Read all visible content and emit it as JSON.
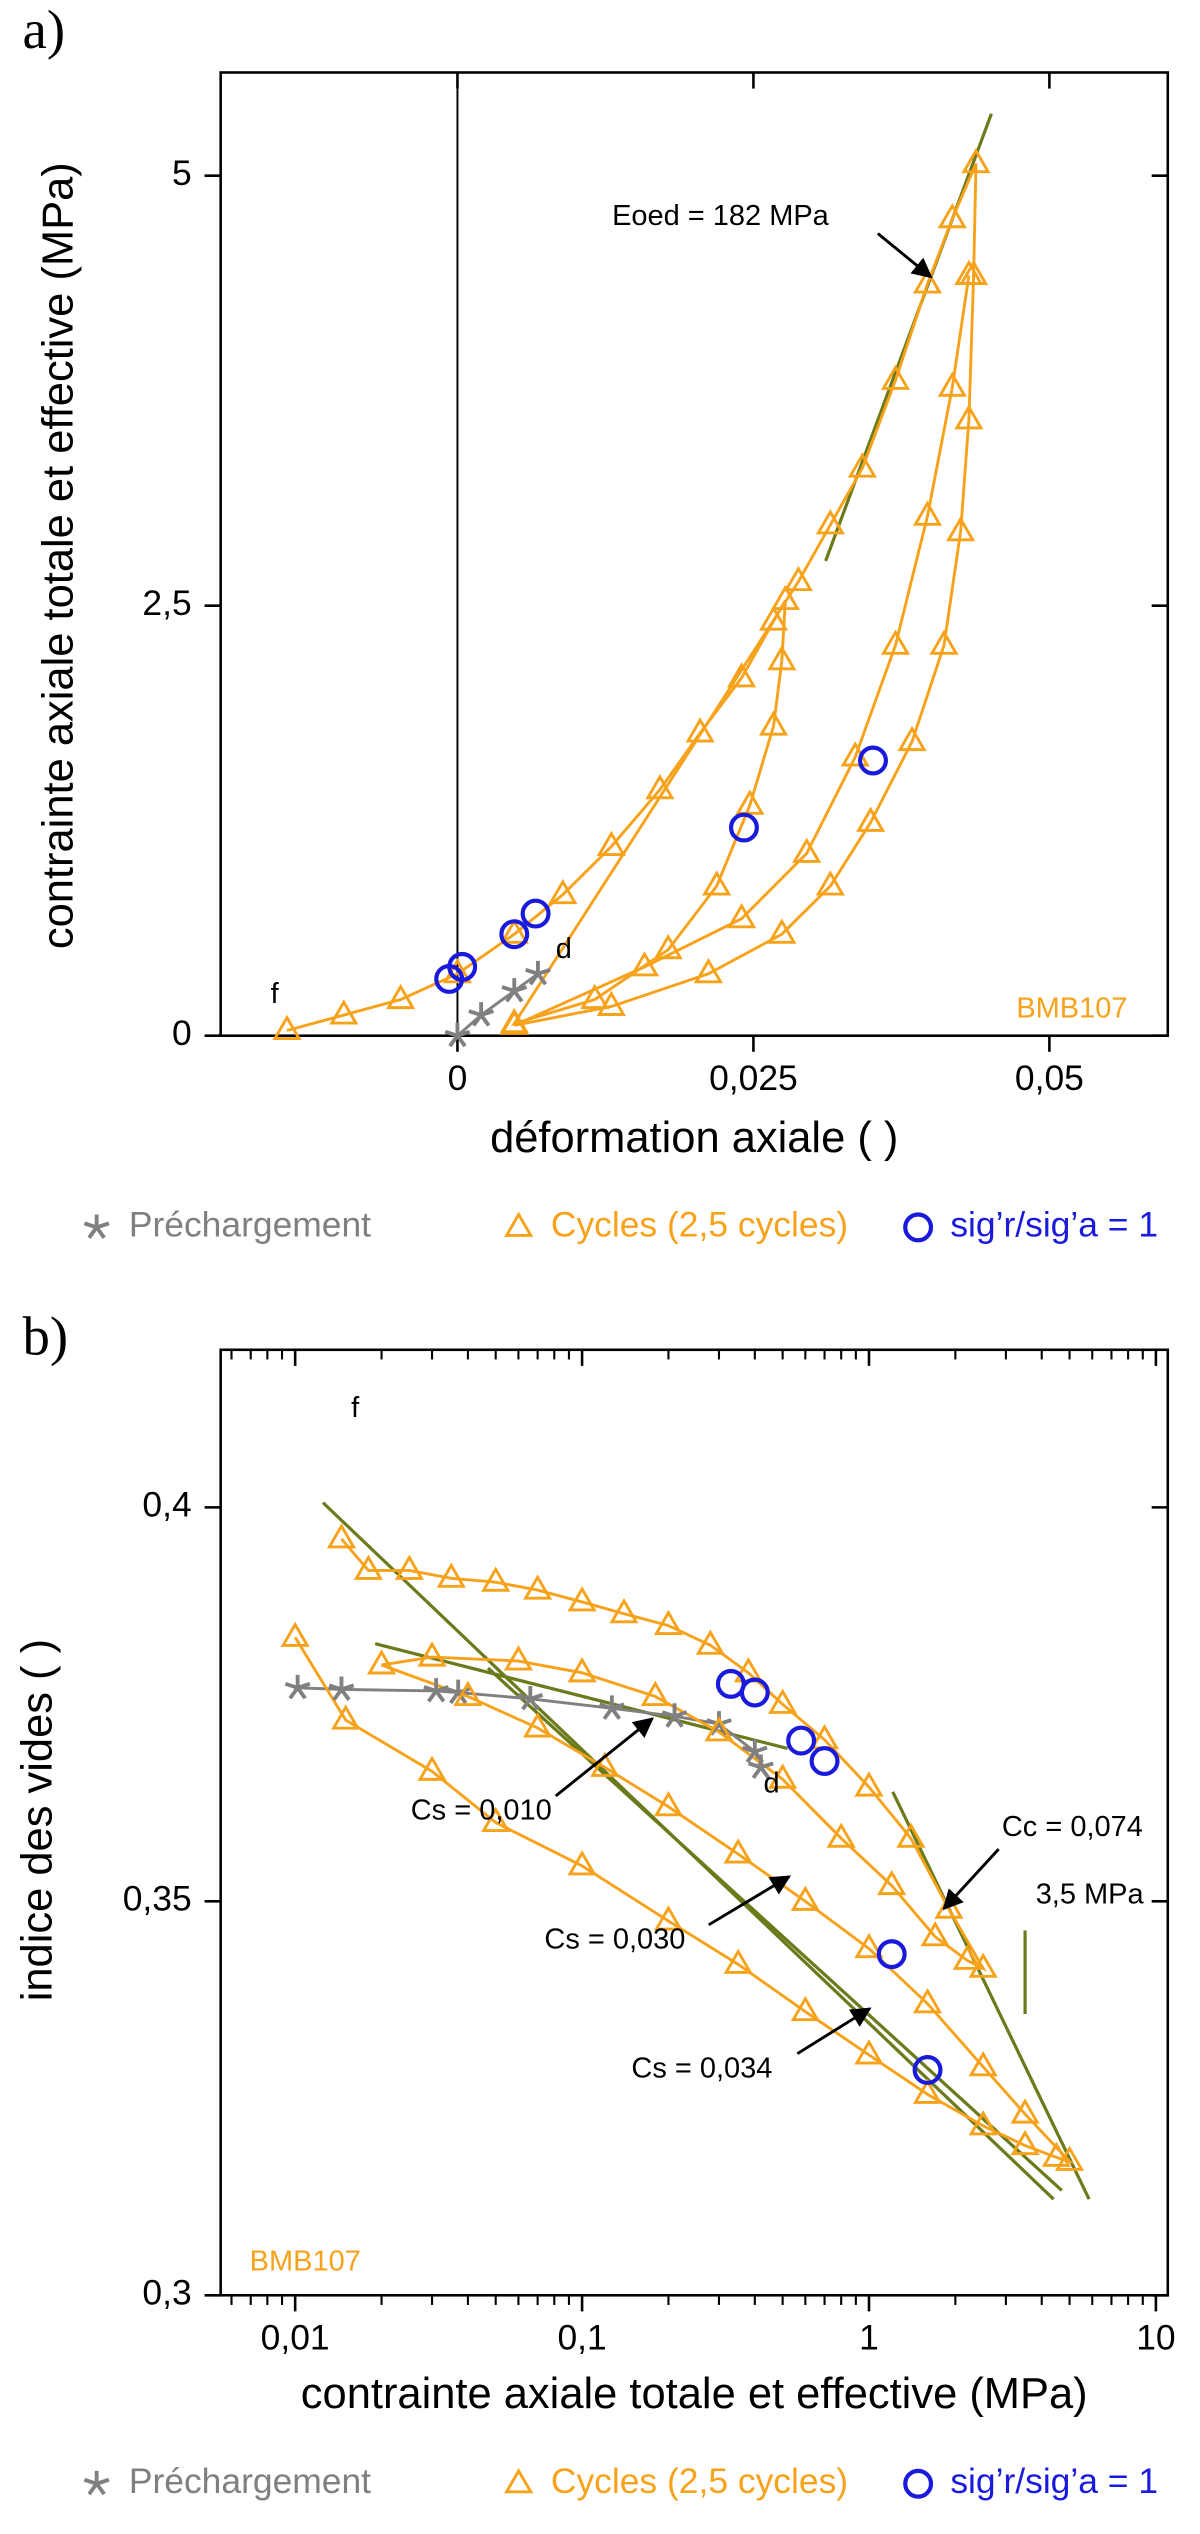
{
  "chart_data": [
    {
      "type": "scatter",
      "label": "a)",
      "x_label": "déformation axiale ( )",
      "y_label": "contrainte axiale totale et effective (MPa)",
      "xlim": [
        -0.02,
        0.06
      ],
      "ylim": [
        0,
        5.6
      ],
      "xticks": [
        0,
        {
          "value": 0.025,
          "label": "0,025"
        },
        {
          "value": 0.05,
          "label": "0,05"
        }
      ],
      "yticks": [
        0,
        {
          "value": 2.5,
          "label": "2,5"
        },
        5
      ],
      "vline": 0,
      "series": [
        {
          "name": "Préchargement",
          "color": "#808080",
          "marker": "star",
          "x": [
            0,
            0.002,
            0.0048,
            0.0068
          ],
          "values": [
            0,
            0.12,
            0.26,
            0.36
          ]
        },
        {
          "name": "Cycles  (2,5 cycles)",
          "color": "#f7a21b",
          "marker": "triangle",
          "x": [
            -0.0144,
            -0.0096,
            -0.0048,
            0,
            0.0048,
            0.0089,
            0.013,
            0.0171,
            0.0205,
            0.024,
            0.0267,
            0.0277,
            0.0274,
            0.0267,
            0.0247,
            0.0219,
            0.0178,
            0.0116,
            0.0048,
            0.0288,
            0.0315,
            0.0342,
            0.037,
            0.0397,
            0.0418,
            0.0438,
            0.0436,
            0.0432,
            0.0425,
            0.0411,
            0.0384,
            0.0349,
            0.0315,
            0.0274,
            0.0212,
            0.013,
            0.0048,
            0.0158,
            0.024,
            0.0295,
            0.0336,
            0.037,
            0.0397,
            0.0418,
            0.0432
          ],
          "values": [
            0.03,
            0.12,
            0.21,
            0.36,
            0.59,
            0.82,
            1.1,
            1.43,
            1.76,
            2.08,
            2.41,
            2.53,
            2.18,
            1.8,
            1.34,
            0.87,
            0.5,
            0.21,
            0.07,
            2.64,
            2.97,
            3.3,
            3.81,
            4.37,
            4.75,
            5.07,
            4.42,
            3.58,
            2.93,
            2.27,
            1.71,
            1.24,
            0.87,
            0.59,
            0.36,
            0.17,
            0.06,
            0.4,
            0.68,
            1.06,
            1.62,
            2.27,
            3.02,
            3.77,
            4.42
          ]
        },
        {
          "name": "sig’r/sig’a = 1",
          "color": "#1a1adc",
          "marker": "circle",
          "x": [
            -0.0007,
            0.0004,
            0.0048,
            0.0066,
            0.0242,
            0.0351
          ],
          "values": [
            0.33,
            0.4,
            0.59,
            0.71,
            1.21,
            1.6
          ]
        }
      ],
      "lines": [
        {
          "color": "#6b7a1a",
          "x": [
            0.0311,
            0.0451
          ],
          "values": [
            2.76,
            5.36
          ]
        }
      ],
      "annotations": [
        {
          "text": "Eoed = 182 MPa"
        },
        {
          "text": "d"
        },
        {
          "text": "f"
        },
        {
          "text": "BMB107"
        }
      ]
    },
    {
      "type": "scatter",
      "label": "b)",
      "x_label": "contrainte axiale totale et effective (MPa)",
      "y_label": "indice des vides ( )",
      "xscale": "log",
      "xlim": [
        0.0055,
        11
      ],
      "ylim": [
        0.3,
        0.42
      ],
      "xticks": [
        {
          "value": 0.01,
          "label": "0,01"
        },
        {
          "value": 0.1,
          "label": "0,1"
        },
        1,
        10
      ],
      "xminorticks": [
        0.006,
        0.007,
        0.008,
        0.009,
        0.02,
        0.03,
        0.04,
        0.05,
        0.06,
        0.07,
        0.08,
        0.09,
        0.2,
        0.3,
        0.4,
        0.5,
        0.6,
        0.7,
        0.8,
        0.9,
        2,
        3,
        4,
        5,
        6,
        7,
        8,
        9
      ],
      "yticks": [
        {
          "value": 0.3,
          "label": "0,3"
        },
        {
          "value": 0.35,
          "label": "0,35"
        },
        {
          "value": 0.4,
          "label": "0,4"
        }
      ],
      "series": [
        {
          "name": "Préchargement",
          "color": "#808080",
          "marker": "star",
          "x": [
            0.0102,
            0.0145,
            0.031,
            0.037,
            0.066,
            0.127,
            0.21,
            0.3,
            0.4,
            0.42
          ],
          "values": [
            0.3771,
            0.3769,
            0.3767,
            0.3765,
            0.3757,
            0.3745,
            0.3735,
            0.3725,
            0.369,
            0.367
          ]
        },
        {
          "name": "Cycles  (2,5 cycles)",
          "color": "#f7a21b",
          "marker": "triangle",
          "x": [
            0.0145,
            0.018,
            0.025,
            0.035,
            0.05,
            0.07,
            0.1,
            0.14,
            0.2,
            0.28,
            0.38,
            0.5,
            0.7,
            1,
            1.4,
            1.9,
            2.5,
            2.2,
            1.7,
            1.2,
            0.8,
            0.5,
            0.3,
            0.18,
            0.1,
            0.06,
            0.03,
            0.02,
            0.04,
            0.07,
            0.12,
            0.2,
            0.35,
            0.6,
            1,
            1.6,
            2.5,
            3.5,
            5,
            4.5,
            3.5,
            2.5,
            1.6,
            1,
            0.6,
            0.35,
            0.2,
            0.1,
            0.05,
            0.03,
            0.015,
            0.01
          ],
          "values": [
            0.396,
            0.392,
            0.392,
            0.391,
            0.3905,
            0.3895,
            0.388,
            0.3865,
            0.385,
            0.3825,
            0.379,
            0.375,
            0.3705,
            0.3645,
            0.358,
            0.349,
            0.3415,
            0.3425,
            0.3455,
            0.352,
            0.358,
            0.3655,
            0.3715,
            0.376,
            0.379,
            0.3805,
            0.381,
            0.38,
            0.376,
            0.372,
            0.367,
            0.362,
            0.356,
            0.35,
            0.344,
            0.337,
            0.329,
            0.323,
            0.317,
            0.3175,
            0.319,
            0.3215,
            0.3255,
            0.3305,
            0.336,
            0.342,
            0.3475,
            0.3545,
            0.36,
            0.3665,
            0.373,
            0.3835
          ]
        },
        {
          "name": "sig’r/sig’a = 1",
          "color": "#1a1adc",
          "marker": "circle",
          "x": [
            0.33,
            0.4,
            0.58,
            0.7,
            1.2,
            1.6
          ],
          "values": [
            0.3776,
            0.3765,
            0.3704,
            0.3678,
            0.3433,
            0.3286
          ]
        }
      ],
      "lines": [
        {
          "color": "#6b7a1a",
          "x": [
            1.21,
            5.85
          ],
          "values": [
            0.3639,
            0.3122
          ]
        },
        {
          "color": "#6b7a1a",
          "x": [
            0.019,
            0.52
          ],
          "values": [
            0.3827,
            0.3694
          ]
        },
        {
          "color": "#6b7a1a",
          "x": [
            0.047,
            4.7
          ],
          "values": [
            0.3796,
            0.3133
          ]
        },
        {
          "color": "#6b7a1a",
          "x": [
            0.0125,
            4.4
          ],
          "values": [
            0.4006,
            0.3122
          ]
        },
        {
          "color": "#6b7a1a",
          "x": [
            3.5,
            3.5
          ],
          "values": [
            0.3463,
            0.3357
          ]
        }
      ],
      "annotations": [
        {
          "text": "f"
        },
        {
          "text": "d"
        },
        {
          "text": "Cs = 0,010"
        },
        {
          "text": "Cs = 0,030"
        },
        {
          "text": "Cs = 0,034"
        },
        {
          "text": "Cc = 0,074"
        },
        {
          "text": "3,5 MPa"
        },
        {
          "text": "BMB107"
        }
      ]
    }
  ]
}
